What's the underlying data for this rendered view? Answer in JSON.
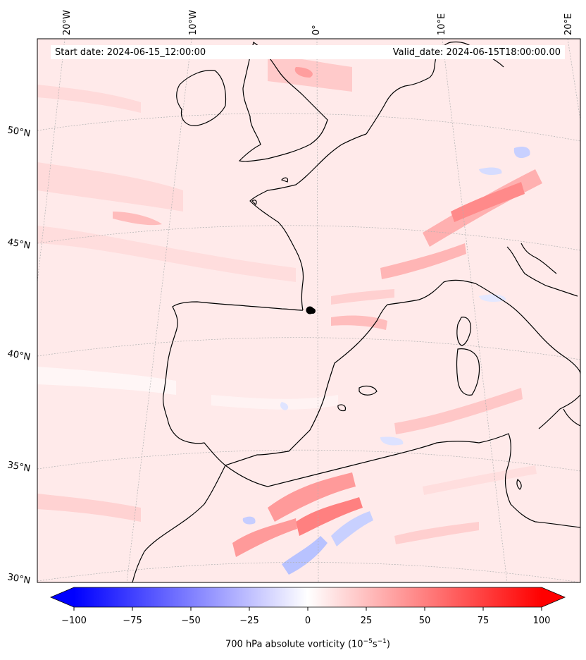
{
  "header": {
    "start_date": "Start date: 2024-06-15_12:00:00",
    "valid_date": "Valid_date: 2024-06-15T18:00:00.00"
  },
  "longitude_labels": [
    "20°W",
    "10°W",
    "0°",
    "10°E",
    "20°E"
  ],
  "latitude_labels": [
    "50°N",
    "45°N",
    "40°N",
    "35°N",
    "30°N"
  ],
  "colorbar": {
    "ticks": [
      "−100",
      "−75",
      "−50",
      "−25",
      "0",
      "25",
      "50",
      "75",
      "100"
    ],
    "range": [
      -100,
      100
    ],
    "negative_color": "#0000ff",
    "zero_color": "#ffffff",
    "positive_color": "#ff0000",
    "label_prefix": "700 hPa absolute vorticity (10",
    "label_exp1": "−5",
    "label_mid": "s",
    "label_exp2": "−1",
    "label_suffix": ")"
  },
  "colors": {
    "background_field": "#ffeaea",
    "coastline": "#000000",
    "gridline": "#b0b0b0"
  }
}
